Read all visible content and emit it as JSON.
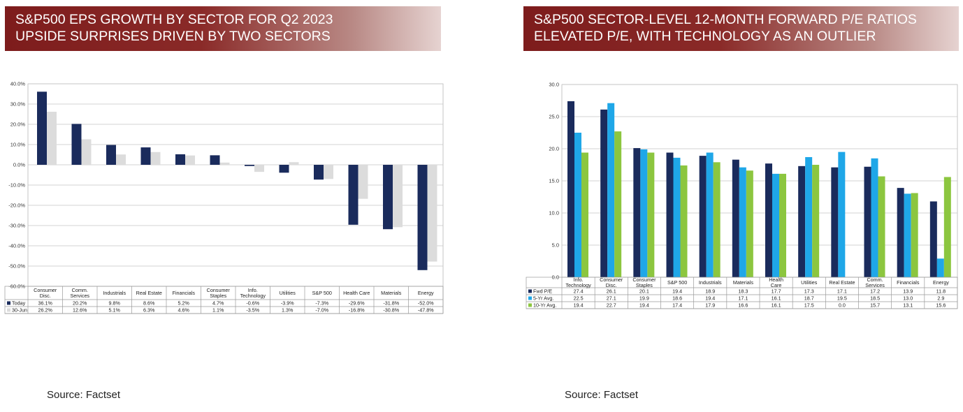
{
  "left": {
    "title_line1": "S&P500 EPS GROWTH BY SECTOR FOR Q2 2023",
    "title_line2": "UPSIDE SURPRISES DRIVEN BY TWO SECTORS",
    "source": "Source: Factset"
  },
  "right": {
    "title_line1": "S&P500 SECTOR-LEVEL 12-MONTH FORWARD P/E RATIOS",
    "title_line2": "ELEVATED P/E, WITH TECHNOLOGY AS AN OUTLIER",
    "source": "Source: Factset"
  },
  "chart_data": [
    {
      "type": "bar",
      "title": "S&P500 EPS GROWTH BY SECTOR FOR Q2 2023",
      "categories": [
        [
          "Consumer",
          "Disc."
        ],
        [
          "Comm.",
          "Services"
        ],
        [
          "Industrials"
        ],
        [
          "Real Estate"
        ],
        [
          "Financials"
        ],
        [
          "Consumer",
          "Staples"
        ],
        [
          "Info.",
          "Technology"
        ],
        [
          "Utilities"
        ],
        [
          "S&P 500"
        ],
        [
          "Health Care"
        ],
        [
          "Materials"
        ],
        [
          "Energy"
        ]
      ],
      "series": [
        {
          "name": "Today",
          "color": "#1a2b5c",
          "values": [
            36.1,
            20.2,
            9.8,
            8.6,
            5.2,
            4.7,
            -0.6,
            -3.9,
            -7.3,
            -29.6,
            -31.8,
            -52.0
          ],
          "labels": [
            "36.1%",
            "20.2%",
            "9.8%",
            "8.6%",
            "5.2%",
            "4.7%",
            "-0.6%",
            "-3.9%",
            "-7.3%",
            "-29.6%",
            "-31.8%",
            "-52.0%"
          ]
        },
        {
          "name": "30-Jun",
          "color": "#dcdcdc",
          "values": [
            26.2,
            12.6,
            5.1,
            6.3,
            4.6,
            1.1,
            -3.5,
            1.3,
            -7.0,
            -16.8,
            -30.8,
            -47.8
          ],
          "labels": [
            "26.2%",
            "12.6%",
            "5.1%",
            "6.3%",
            "4.6%",
            "1.1%",
            "-3.5%",
            "1.3%",
            "-7.0%",
            "-16.8%",
            "-30.8%",
            "-47.8%"
          ]
        }
      ],
      "ylim": [
        -60,
        40
      ],
      "yticks": [
        -60,
        -50,
        -40,
        -30,
        -20,
        -10,
        0,
        10,
        20,
        30,
        40
      ],
      "ytick_labels": [
        "-60.0%",
        "-50.0%",
        "-40.0%",
        "-30.0%",
        "-20.0%",
        "-10.0%",
        "0.0%",
        "10.0%",
        "20.0%",
        "30.0%",
        "40.0%"
      ],
      "grid": true,
      "legend": "data-table"
    },
    {
      "type": "bar",
      "title": "S&P500 SECTOR-LEVEL 12-MONTH FORWARD P/E RATIOS",
      "categories": [
        [
          "Info.",
          "Technology"
        ],
        [
          "Consumer",
          "Disc."
        ],
        [
          "Consumer",
          "Staples"
        ],
        [
          "S&P 500"
        ],
        [
          "Industrials"
        ],
        [
          "Materials"
        ],
        [
          "Health",
          "Care"
        ],
        [
          "Utilities"
        ],
        [
          "Real Estate"
        ],
        [
          "Comm.",
          "Services"
        ],
        [
          "Financials"
        ],
        [
          "Energy"
        ]
      ],
      "series": [
        {
          "name": "Fwd P/E",
          "color": "#1a2b5c",
          "values": [
            27.4,
            26.1,
            20.1,
            19.4,
            18.9,
            18.3,
            17.7,
            17.3,
            17.1,
            17.2,
            13.9,
            11.8
          ],
          "labels": [
            "27.4",
            "26.1",
            "20.1",
            "19.4",
            "18.9",
            "18.3",
            "17.7",
            "17.3",
            "17.1",
            "17.2",
            "13.9",
            "11.8"
          ]
        },
        {
          "name": "5-Yr Avg.",
          "color": "#1fa7e8",
          "values": [
            22.5,
            27.1,
            19.9,
            18.6,
            19.4,
            17.1,
            16.1,
            18.7,
            19.5,
            18.5,
            13.0,
            2.9
          ],
          "labels": [
            "22.5",
            "27.1",
            "19.9",
            "18.6",
            "19.4",
            "17.1",
            "16.1",
            "18.7",
            "19.5",
            "18.5",
            "13.0",
            "2.9"
          ]
        },
        {
          "name": "10-Yr Avg.",
          "color": "#8cc63f",
          "values": [
            19.4,
            22.7,
            19.4,
            17.4,
            17.9,
            16.6,
            16.1,
            17.5,
            0.0,
            15.7,
            13.1,
            15.6
          ],
          "labels": [
            "19.4",
            "22.7",
            "19.4",
            "17.4",
            "17.9",
            "16.6",
            "16.1",
            "17.5",
            "0.0",
            "15.7",
            "13.1",
            "15.6"
          ]
        }
      ],
      "ylim": [
        0,
        30
      ],
      "yticks": [
        0,
        5,
        10,
        15,
        20,
        25,
        30
      ],
      "ytick_labels": [
        "0.0",
        "5.0",
        "10.0",
        "15.0",
        "20.0",
        "25.0",
        "30.0"
      ],
      "grid": true,
      "legend": "data-table"
    }
  ]
}
